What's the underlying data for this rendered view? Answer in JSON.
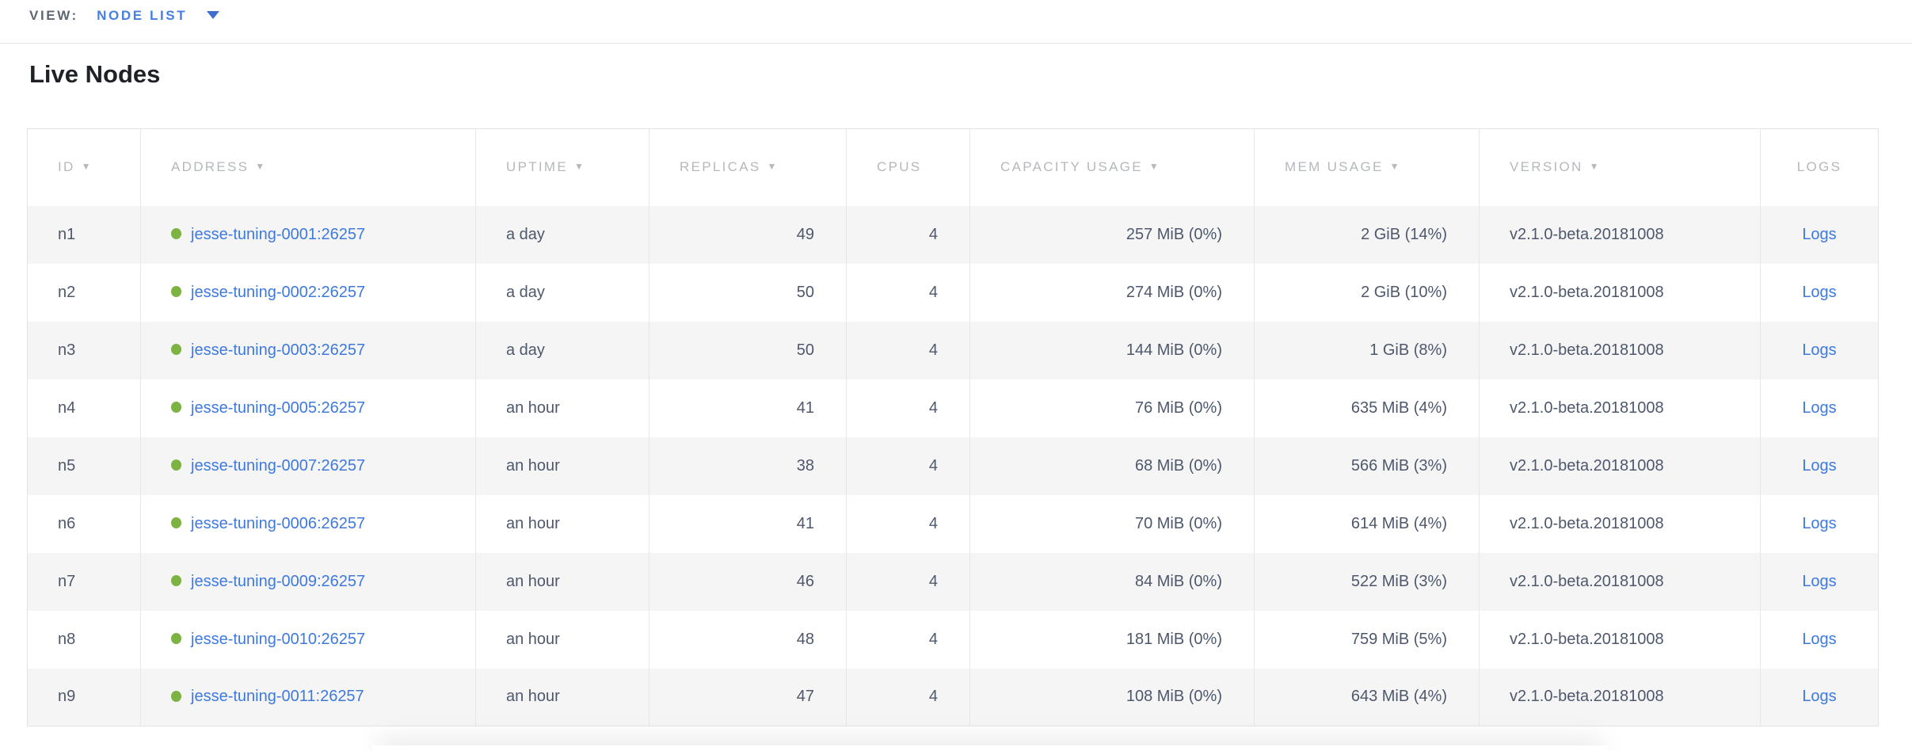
{
  "view_bar": {
    "label": "VIEW:",
    "selected": "NODE LIST"
  },
  "page": {
    "title": "Live Nodes"
  },
  "colors": {
    "accent_blue": "#4480e4",
    "link_blue": "#3e79de",
    "live_green": "#7cb342",
    "header_gray": "#b5b8bd",
    "row_stripe": "#f5f5f6"
  },
  "table": {
    "columns": [
      {
        "key": "id",
        "label": "ID",
        "sortable": true,
        "align": "left"
      },
      {
        "key": "address",
        "label": "ADDRESS",
        "sortable": true,
        "align": "left"
      },
      {
        "key": "uptime",
        "label": "UPTIME",
        "sortable": true,
        "align": "left"
      },
      {
        "key": "replicas",
        "label": "REPLICAS",
        "sortable": true,
        "align": "right"
      },
      {
        "key": "cpus",
        "label": "CPUS",
        "sortable": false,
        "align": "right"
      },
      {
        "key": "capacity_usage",
        "label": "CAPACITY USAGE",
        "sortable": true,
        "align": "right"
      },
      {
        "key": "mem_usage",
        "label": "MEM USAGE",
        "sortable": true,
        "align": "right"
      },
      {
        "key": "version",
        "label": "VERSION",
        "sortable": true,
        "align": "left"
      },
      {
        "key": "logs",
        "label": "LOGS",
        "sortable": false,
        "align": "center"
      }
    ],
    "rows": [
      {
        "id": "n1",
        "status": "live",
        "address": "jesse-tuning-0001:26257",
        "uptime": "a day",
        "replicas": "49",
        "cpus": "4",
        "capacity_usage": "257 MiB (0%)",
        "mem_usage": "2 GiB (14%)",
        "version": "v2.1.0-beta.20181008",
        "logs": "Logs"
      },
      {
        "id": "n2",
        "status": "live",
        "address": "jesse-tuning-0002:26257",
        "uptime": "a day",
        "replicas": "50",
        "cpus": "4",
        "capacity_usage": "274 MiB (0%)",
        "mem_usage": "2 GiB (10%)",
        "version": "v2.1.0-beta.20181008",
        "logs": "Logs"
      },
      {
        "id": "n3",
        "status": "live",
        "address": "jesse-tuning-0003:26257",
        "uptime": "a day",
        "replicas": "50",
        "cpus": "4",
        "capacity_usage": "144 MiB (0%)",
        "mem_usage": "1 GiB (8%)",
        "version": "v2.1.0-beta.20181008",
        "logs": "Logs"
      },
      {
        "id": "n4",
        "status": "live",
        "address": "jesse-tuning-0005:26257",
        "uptime": "an hour",
        "replicas": "41",
        "cpus": "4",
        "capacity_usage": "76 MiB (0%)",
        "mem_usage": "635 MiB (4%)",
        "version": "v2.1.0-beta.20181008",
        "logs": "Logs"
      },
      {
        "id": "n5",
        "status": "live",
        "address": "jesse-tuning-0007:26257",
        "uptime": "an hour",
        "replicas": "38",
        "cpus": "4",
        "capacity_usage": "68 MiB (0%)",
        "mem_usage": "566 MiB (3%)",
        "version": "v2.1.0-beta.20181008",
        "logs": "Logs"
      },
      {
        "id": "n6",
        "status": "live",
        "address": "jesse-tuning-0006:26257",
        "uptime": "an hour",
        "replicas": "41",
        "cpus": "4",
        "capacity_usage": "70 MiB (0%)",
        "mem_usage": "614 MiB (4%)",
        "version": "v2.1.0-beta.20181008",
        "logs": "Logs"
      },
      {
        "id": "n7",
        "status": "live",
        "address": "jesse-tuning-0009:26257",
        "uptime": "an hour",
        "replicas": "46",
        "cpus": "4",
        "capacity_usage": "84 MiB (0%)",
        "mem_usage": "522 MiB (3%)",
        "version": "v2.1.0-beta.20181008",
        "logs": "Logs"
      },
      {
        "id": "n8",
        "status": "live",
        "address": "jesse-tuning-0010:26257",
        "uptime": "an hour",
        "replicas": "48",
        "cpus": "4",
        "capacity_usage": "181 MiB (0%)",
        "mem_usage": "759 MiB (5%)",
        "version": "v2.1.0-beta.20181008",
        "logs": "Logs"
      },
      {
        "id": "n9",
        "status": "live",
        "address": "jesse-tuning-0011:26257",
        "uptime": "an hour",
        "replicas": "47",
        "cpus": "4",
        "capacity_usage": "108 MiB (0%)",
        "mem_usage": "643 MiB (4%)",
        "version": "v2.1.0-beta.20181008",
        "logs": "Logs"
      }
    ]
  }
}
